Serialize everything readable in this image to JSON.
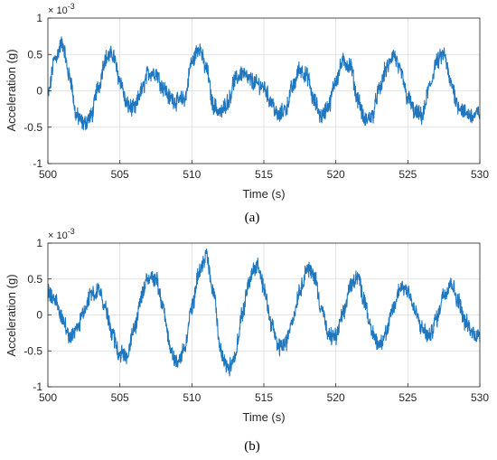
{
  "colors": {
    "series": "#1f77c0",
    "grid": "#dcdcdc",
    "axis": "#262626"
  },
  "chart_data": [
    {
      "type": "line",
      "caption": "(a)",
      "xlabel": "Time (s)",
      "ylabel": "Acceleration (g)",
      "exponent_label": "× 10",
      "exponent_power": "-3",
      "xlim": [
        500,
        530
      ],
      "ylim": [
        -1,
        1
      ],
      "xticks": [
        "500",
        "505",
        "510",
        "515",
        "520",
        "525",
        "530"
      ],
      "yticks": [
        "1",
        "0.5",
        "0",
        "-0.5",
        "-1"
      ],
      "grid": true,
      "series": [
        {
          "x": [
            500,
            500.5,
            501,
            501.5,
            502,
            502.5,
            503,
            503.5,
            504,
            504.5,
            505,
            505.5,
            506,
            506.5,
            507,
            507.5,
            508,
            508.5,
            509,
            509.5,
            510,
            510.5,
            511,
            511.5,
            512,
            512.5,
            513,
            513.5,
            514,
            514.5,
            515,
            515.5,
            516,
            516.5,
            517,
            517.5,
            518,
            518.5,
            519,
            519.5,
            520,
            520.5,
            521,
            521.5,
            522,
            522.5,
            523,
            523.5,
            524,
            524.5,
            525,
            525.5,
            526,
            526.5,
            527,
            527.5,
            528,
            528.5,
            529,
            529.5,
            530
          ],
          "y": [
            -0.05,
            0.45,
            0.65,
            0.2,
            -0.35,
            -0.45,
            -0.35,
            0.05,
            0.45,
            0.5,
            0.15,
            -0.2,
            -0.25,
            0.0,
            0.25,
            0.25,
            0.05,
            -0.1,
            -0.15,
            -0.1,
            0.4,
            0.6,
            0.3,
            -0.2,
            -0.3,
            -0.15,
            0.15,
            0.25,
            0.15,
            0.1,
            0.05,
            -0.15,
            -0.35,
            -0.25,
            0.05,
            0.3,
            0.2,
            -0.15,
            -0.35,
            -0.2,
            0.15,
            0.4,
            0.35,
            -0.1,
            -0.4,
            -0.35,
            0.0,
            0.3,
            0.5,
            0.25,
            -0.1,
            -0.3,
            -0.35,
            0.05,
            0.4,
            0.5,
            0.1,
            -0.2,
            -0.3,
            -0.35,
            -0.3
          ]
        }
      ]
    },
    {
      "type": "line",
      "caption": "(b)",
      "xlabel": "Time (s)",
      "ylabel": "Acceleration (g)",
      "exponent_label": "× 10",
      "exponent_power": "-3",
      "xlim": [
        500,
        530
      ],
      "ylim": [
        -1,
        1
      ],
      "xticks": [
        "500",
        "505",
        "510",
        "515",
        "520",
        "525",
        "530"
      ],
      "yticks": [
        "1",
        "0.5",
        "0",
        "-0.5",
        "-1"
      ],
      "grid": true,
      "series": [
        {
          "x": [
            500,
            500.5,
            501,
            501.5,
            502,
            502.5,
            503,
            503.5,
            504,
            504.5,
            505,
            505.5,
            506,
            506.5,
            507,
            507.5,
            508,
            508.5,
            509,
            509.5,
            510,
            510.5,
            511,
            511.5,
            512,
            512.5,
            513,
            513.5,
            514,
            514.5,
            515,
            515.5,
            516,
            516.5,
            517,
            517.5,
            518,
            518.5,
            519,
            519.5,
            520,
            520.5,
            521,
            521.5,
            522,
            522.5,
            523,
            523.5,
            524,
            524.5,
            525,
            525.5,
            526,
            526.5,
            527,
            527.5,
            528,
            528.5,
            529,
            529.5,
            530
          ],
          "y": [
            0.3,
            0.2,
            -0.05,
            -0.3,
            -0.2,
            0.05,
            0.3,
            0.35,
            0.1,
            -0.3,
            -0.55,
            -0.55,
            -0.2,
            0.25,
            0.55,
            0.5,
            0.1,
            -0.45,
            -0.7,
            -0.45,
            0.1,
            0.6,
            0.8,
            0.3,
            -0.5,
            -0.75,
            -0.55,
            0.0,
            0.5,
            0.7,
            0.4,
            -0.1,
            -0.45,
            -0.4,
            -0.05,
            0.35,
            0.65,
            0.55,
            0.1,
            -0.3,
            -0.3,
            0.0,
            0.4,
            0.55,
            0.2,
            -0.25,
            -0.4,
            -0.25,
            0.1,
            0.4,
            0.35,
            0.05,
            -0.2,
            -0.3,
            -0.05,
            0.3,
            0.45,
            0.2,
            -0.1,
            -0.25,
            -0.3
          ]
        }
      ]
    }
  ]
}
